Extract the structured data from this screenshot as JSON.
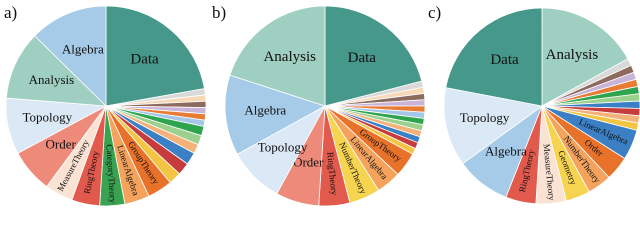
{
  "chart_data": [
    {
      "type": "pie",
      "title": "a)",
      "categories": [
        "Data",
        null,
        null,
        null,
        null,
        null,
        null,
        null,
        null,
        null,
        null,
        null,
        null,
        "GroupTheory",
        "LinearAlgebra",
        "CategoryTheory",
        "RingTheory",
        "MeasureTheory",
        "Order",
        "Topology",
        "Analysis",
        "Algebra"
      ],
      "values": [
        22,
        1,
        1,
        1,
        1,
        1,
        1,
        1.5,
        1.5,
        1.5,
        2,
        2,
        2,
        4,
        4,
        4,
        4.5,
        4.5,
        7,
        9,
        11,
        12.5
      ],
      "colors": [
        "#46988a",
        "#d9d9d9",
        "#f7d9b8",
        "#8c6a5d",
        "#c9b3d6",
        "#e97c35",
        "#a4c6e8",
        "#2fa44f",
        "#9bd08d",
        "#f4b27a",
        "#3b7fc4",
        "#c63b3b",
        "#f4c542",
        "#e9722a",
        "#f5a35c",
        "#3aa351",
        "#e25a4d",
        "#fbe3d4",
        "#ed8a7a",
        "#dbe8f5",
        "#9fcfc0",
        "#a6cbe9"
      ]
    },
    {
      "type": "pie",
      "title": "b)",
      "categories": [
        "Data",
        null,
        null,
        null,
        null,
        null,
        null,
        null,
        null,
        null,
        null,
        null,
        null,
        "GroupTheory",
        "LinearAlgebra",
        "NumberTheory",
        "RingTheory",
        "Order",
        "Topology",
        "Algebra",
        "Analysis"
      ],
      "values": [
        21,
        1,
        1,
        1,
        1,
        1,
        1,
        1,
        1,
        1,
        1,
        1,
        1,
        4,
        4,
        5,
        5,
        7,
        9,
        13,
        20
      ],
      "colors": [
        "#46988a",
        "#d9d9d9",
        "#f7d9b8",
        "#8c6a5d",
        "#c9b3d6",
        "#e97c35",
        "#a4c6e8",
        "#2fa44f",
        "#9bd08d",
        "#f4b27a",
        "#3b7fc4",
        "#c63b3b",
        "#f4c542",
        "#e9722a",
        "#f5a35c",
        "#f6d44f",
        "#e25a4d",
        "#ed8a7a",
        "#dbe8f5",
        "#a6cbe9",
        "#9fcfc0"
      ]
    },
    {
      "type": "pie",
      "title": "c)",
      "categories": [
        "Analysis",
        null,
        null,
        null,
        null,
        null,
        null,
        null,
        null,
        null,
        null,
        "LinearAlgebra",
        "Order",
        "NumberTheory",
        "Geometry",
        "MeasureTheory",
        "RingTheory",
        "Algebra",
        "Topology",
        "Data"
      ],
      "values": [
        17,
        1.2,
        1.2,
        1.2,
        1.2,
        1.2,
        1.2,
        1.2,
        1.2,
        1.2,
        1.2,
        5,
        4,
        4,
        4,
        5,
        5,
        9,
        13,
        22
      ],
      "colors": [
        "#9fcfc0",
        "#d9d9d9",
        "#8c6a5d",
        "#c9b3d6",
        "#e97c35",
        "#2fa44f",
        "#9bd08d",
        "#3b7fc4",
        "#c63b3b",
        "#f4b27a",
        "#f4c542",
        "#3b7fc4",
        "#e9722a",
        "#f5a35c",
        "#f6d44f",
        "#fbe3d4",
        "#e25a4d",
        "#a6cbe9",
        "#dbe8f5",
        "#46988a"
      ]
    }
  ]
}
